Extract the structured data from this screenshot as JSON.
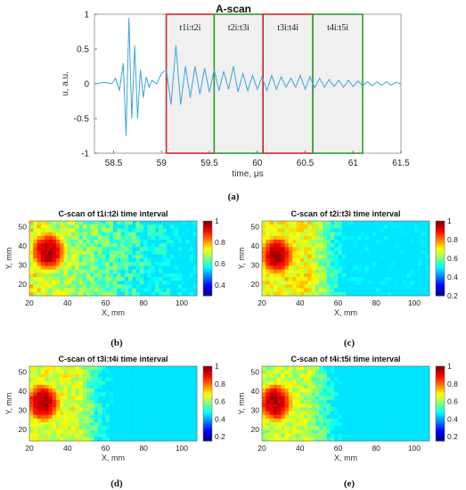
{
  "chart_data": [
    {
      "type": "line",
      "title": "A-scan",
      "xlabel": "time, μs",
      "ylabel": "u, a.u.",
      "xlim": [
        58.3,
        61.5
      ],
      "ylim": [
        -1,
        1
      ],
      "xticks": [
        "58.5",
        "59",
        "59.5",
        "60",
        "60.5",
        "61",
        "61.5"
      ],
      "yticks": [
        "-1",
        "-0.5",
        "0",
        "0.5",
        "1"
      ],
      "line_color": "#3aa6d8",
      "windows": [
        {
          "label": "t1i:t2i",
          "start": 59.05,
          "end": 59.55,
          "edge_color": "#d62728"
        },
        {
          "label": "t2i:t3i",
          "start": 59.55,
          "end": 60.06,
          "edge_color": "#2ca02c"
        },
        {
          "label": "t3i:t4i",
          "start": 60.06,
          "end": 60.58,
          "edge_color": "#d62728"
        },
        {
          "label": "t4i:t5i",
          "start": 60.58,
          "end": 61.1,
          "edge_color": "#2ca02c"
        }
      ],
      "series": [
        {
          "x": [
            58.32,
            58.4,
            58.48,
            58.52,
            58.56,
            58.6,
            58.63,
            58.66,
            58.69,
            58.72,
            58.75,
            58.78,
            58.81,
            58.84,
            58.87,
            58.9,
            58.95,
            59.0,
            59.05,
            59.1,
            59.15,
            59.2,
            59.25,
            59.3,
            59.35,
            59.4,
            59.45,
            59.5,
            59.55,
            59.6,
            59.65,
            59.7,
            59.75,
            59.8,
            59.85,
            59.9,
            59.95,
            60.0,
            60.05,
            60.1,
            60.15,
            60.2,
            60.25,
            60.3,
            60.35,
            60.4,
            60.45,
            60.5,
            60.55,
            60.6,
            60.65,
            60.7,
            60.75,
            60.8,
            60.85,
            60.9,
            60.95,
            61.0,
            61.05,
            61.1,
            61.15,
            61.2,
            61.25,
            61.3,
            61.35,
            61.4,
            61.45,
            61.5
          ],
          "y": [
            0.0,
            0.02,
            0.0,
            0.08,
            -0.1,
            0.3,
            -0.75,
            0.95,
            -0.5,
            0.55,
            -0.5,
            0.2,
            -0.2,
            0.1,
            -0.05,
            0.05,
            0.0,
            0.15,
            0.2,
            -0.3,
            0.55,
            -0.3,
            0.25,
            -0.2,
            0.25,
            -0.15,
            0.22,
            -0.12,
            0.2,
            -0.1,
            0.18,
            -0.08,
            0.25,
            -0.12,
            0.15,
            -0.1,
            0.12,
            -0.08,
            0.1,
            -0.1,
            0.12,
            -0.08,
            0.1,
            -0.05,
            0.08,
            -0.05,
            0.12,
            -0.08,
            0.1,
            -0.06,
            0.08,
            -0.05,
            0.06,
            -0.04,
            0.05,
            -0.05,
            0.05,
            -0.04,
            0.04,
            -0.03,
            0.03,
            -0.03,
            0.03,
            -0.02,
            0.03,
            -0.02,
            0.02,
            0.0
          ]
        }
      ]
    },
    {
      "type": "heatmap",
      "title": "C-scan of t1i:t2i time interval",
      "xlabel": "X, mm",
      "ylabel": "Y, mm",
      "xticks": [
        "20",
        "40",
        "60",
        "80",
        "100"
      ],
      "yticks": [
        "20",
        "30",
        "40",
        "50"
      ],
      "colorbar_ticks": [
        "0.4",
        "0.6",
        "0.8",
        "1"
      ],
      "clim": [
        0.3,
        1
      ],
      "colormap": "jet",
      "hotspot_center": [
        30,
        37
      ],
      "panel_label": "(b)"
    },
    {
      "type": "heatmap",
      "title": "C-scan of t2i:t3i time interval",
      "xlabel": "X, mm",
      "ylabel": "Y, mm",
      "xticks": [
        "20",
        "40",
        "60",
        "80",
        "100"
      ],
      "yticks": [
        "20",
        "30",
        "40",
        "50"
      ],
      "colorbar_ticks": [
        "0.2",
        "0.4",
        "0.6",
        "0.8",
        "1"
      ],
      "clim": [
        0.2,
        1
      ],
      "colormap": "jet",
      "hotspot_center": [
        28,
        35
      ],
      "panel_label": "(c)"
    },
    {
      "type": "heatmap",
      "title": "C-scan of t3i:t4i time interval",
      "xlabel": "X, mm",
      "ylabel": "Y, mm",
      "xticks": [
        "20",
        "40",
        "60",
        "80",
        "100"
      ],
      "yticks": [
        "20",
        "30",
        "40",
        "50"
      ],
      "colorbar_ticks": [
        "0.2",
        "0.4",
        "0.6",
        "0.8",
        "1"
      ],
      "clim": [
        0.15,
        1
      ],
      "colormap": "jet",
      "hotspot_center": [
        27,
        34
      ],
      "panel_label": "(d)"
    },
    {
      "type": "heatmap",
      "title": "C-scan of t4i:t5i time interval",
      "xlabel": "X, mm",
      "ylabel": "Y, mm",
      "xticks": [
        "20",
        "40",
        "60",
        "80",
        "100"
      ],
      "yticks": [
        "20",
        "30",
        "40",
        "50"
      ],
      "colorbar_ticks": [
        "0.2",
        "0.4",
        "0.6",
        "0.8",
        "1"
      ],
      "clim": [
        0.15,
        1
      ],
      "colormap": "jet",
      "hotspot_center": [
        27,
        34
      ],
      "panel_label": "(e)"
    }
  ],
  "captions": {
    "a": "(a)"
  }
}
